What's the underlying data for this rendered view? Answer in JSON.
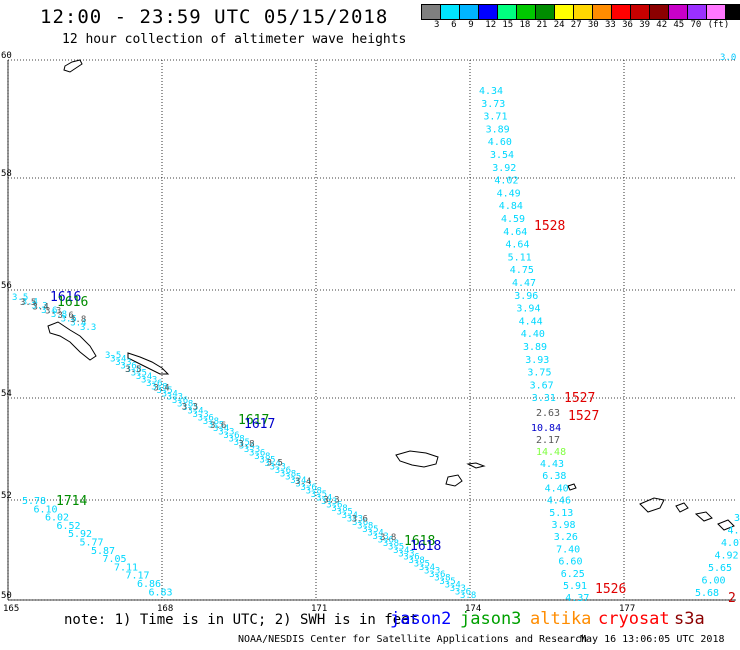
{
  "title": "12:00 - 23:59 UTC 05/15/2018",
  "subtitle": "12 hour collection of altimeter wave heights",
  "scale": {
    "unit": "(ft)",
    "colors": [
      "#7f7f7f",
      "#00e5ff",
      "#00b5ff",
      "#0000ff",
      "#00ff7f",
      "#00c800",
      "#008c00",
      "#ffff00",
      "#ffd700",
      "#ff8c00",
      "#ff0000",
      "#c80000",
      "#8b0000",
      "#c800c8",
      "#9b30ff",
      "#ff77ff",
      "#000000"
    ],
    "labels": [
      "3",
      "6",
      "9",
      "12",
      "15",
      "18",
      "21",
      "24",
      "27",
      "30",
      "33",
      "36",
      "39",
      "42",
      "45",
      "70"
    ]
  },
  "map": {
    "lat_labels": [
      "60",
      "58",
      "56",
      "54",
      "52",
      "50"
    ],
    "lon_labels": [
      "165",
      "168",
      "171",
      "174",
      "177"
    ],
    "top_right_value": "3.0"
  },
  "tracks": {
    "cyan_north": [
      "4.34",
      "3.73",
      "3.71",
      "3.89",
      "4.60",
      "3.54",
      "3.92",
      "4.02",
      "4.49",
      "4.84",
      "4.59",
      "4.64",
      "4.64",
      "5.11",
      "4.75",
      "4.47",
      "3.96",
      "3.94",
      "4.44",
      "4.40",
      "3.89",
      "3.93",
      "3.75",
      "3.67",
      "3.31"
    ],
    "cyan_south": [
      "4.43",
      "6.38",
      "4.40",
      "4.46",
      "5.13",
      "3.98",
      "3.26",
      "7.40",
      "6.60",
      "6.25",
      "5.91",
      "4.37"
    ],
    "grey_values": [
      "2.63",
      "2.17"
    ],
    "blue_value": "10.84",
    "lightgreen_value": "14.48",
    "sw_track": [
      "5.78",
      "6.10",
      "6.02",
      "6.52",
      "5.92",
      "5.77",
      "5.87",
      "7.05",
      "7.11",
      "7.17",
      "6.86",
      "6.83"
    ],
    "se_track": [
      "3.8",
      "4.5",
      "4.07",
      "4.92",
      "5.65",
      "6.00",
      "5.68"
    ],
    "se_red": "2",
    "times": {
      "t1528": "1528",
      "t1527a": "1527",
      "t1527b": "1527",
      "t1526": "1526",
      "t1616": "1616",
      "t1617": "1617",
      "t1618": "1618",
      "t1714": "1714"
    }
  },
  "note": "note: 1) Time is in UTC; 2) SWH is in feet",
  "legend": {
    "jason2": {
      "label": "jason2",
      "color": "#0000ff"
    },
    "jason3": {
      "label": "jason3",
      "color": "#00a000"
    },
    "altika": {
      "label": "altika",
      "color": "#ff8c00"
    },
    "cryosat": {
      "label": "cryosat",
      "color": "#ff0000"
    },
    "s3a": {
      "label": "s3a",
      "color": "#8b0000"
    }
  },
  "footer": "NOAA/NESDIS Center for Satellite Applications and Research",
  "footer_date": "May 16 13:06:05 UTC 2018"
}
